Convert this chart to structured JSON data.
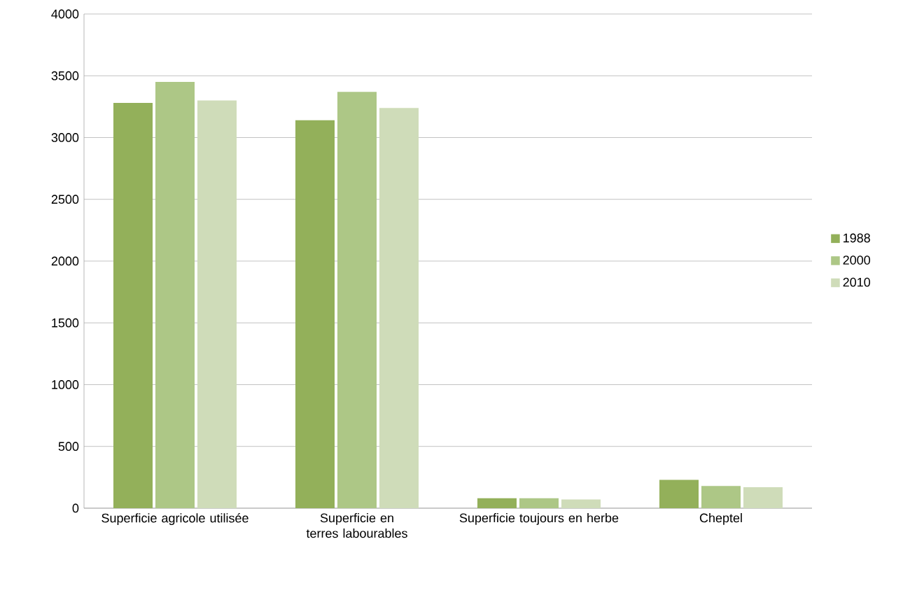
{
  "chart_data": {
    "type": "bar",
    "categories": [
      "Superficie agricole utilisée",
      "Superficie en terres labourables",
      "Superficie toujours en herbe",
      "Cheptel"
    ],
    "series": [
      {
        "name": "1988",
        "color": "#93b05a",
        "values": [
          3280,
          3140,
          80,
          230
        ]
      },
      {
        "name": "2000",
        "color": "#adc786",
        "values": [
          3450,
          3370,
          80,
          180
        ]
      },
      {
        "name": "2010",
        "color": "#cfdcb9",
        "values": [
          3300,
          3240,
          70,
          170
        ]
      }
    ],
    "ylim": [
      0,
      4000
    ],
    "yticks": [
      0,
      500,
      1000,
      1500,
      2000,
      2500,
      3000,
      3500,
      4000
    ],
    "grid": "y",
    "legend": "right"
  }
}
